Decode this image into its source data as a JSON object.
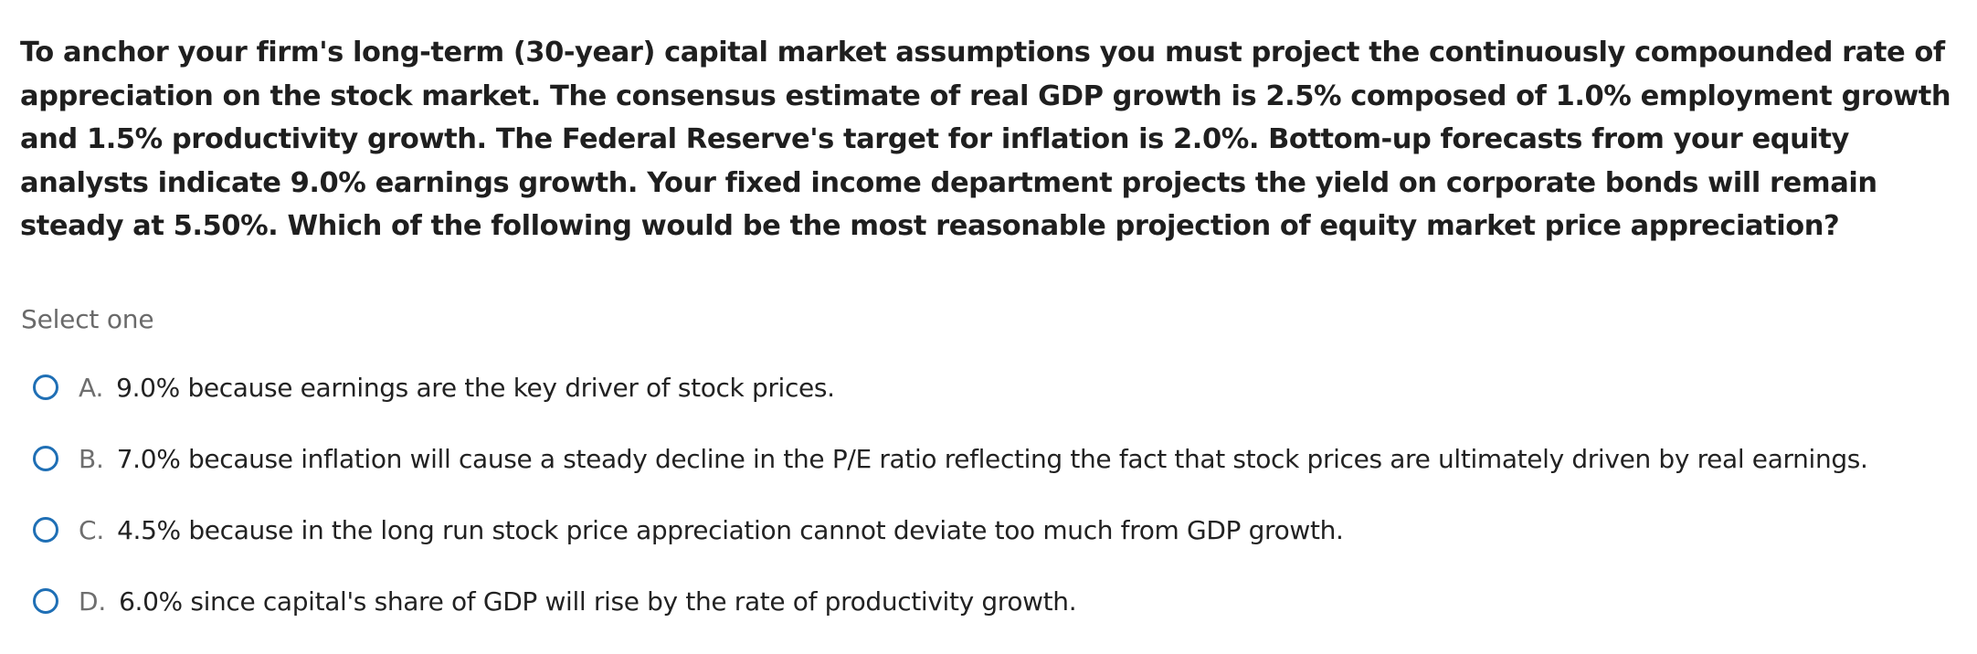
{
  "question": {
    "text": "To anchor your firm's long-term (30-year) capital market assumptions you must project the continuously compounded rate of appreciation on the stock market. The consensus estimate of real GDP growth is 2.5% composed of 1.0% employment growth and 1.5% productivity growth. The Federal Reserve's target for inflation is 2.0%. Bottom-up forecasts from your equity analysts indicate 9.0% earnings growth. Your fixed income department projects the yield on corporate bonds will remain steady at 5.50%. Which of the following would be the most reasonable projection of equity market price appreciation?"
  },
  "prompt": {
    "select_label": "Select one"
  },
  "options": [
    {
      "letter": "A.",
      "text": "9.0% because earnings are the key driver of stock prices."
    },
    {
      "letter": "B.",
      "text": "7.0% because inflation will cause a steady decline in the P/E ratio reflecting the fact that stock prices are ultimately driven by real earnings."
    },
    {
      "letter": "C.",
      "text": "4.5% because in the long run stock price appreciation cannot deviate too much from GDP growth."
    },
    {
      "letter": "D.",
      "text": "6.0% since capital's share of GDP will rise by the rate of productivity growth."
    }
  ],
  "colors": {
    "radio_border": "#1f6fb5",
    "question_text": "#1f1f1f",
    "muted_text": "#6a6a6a"
  }
}
